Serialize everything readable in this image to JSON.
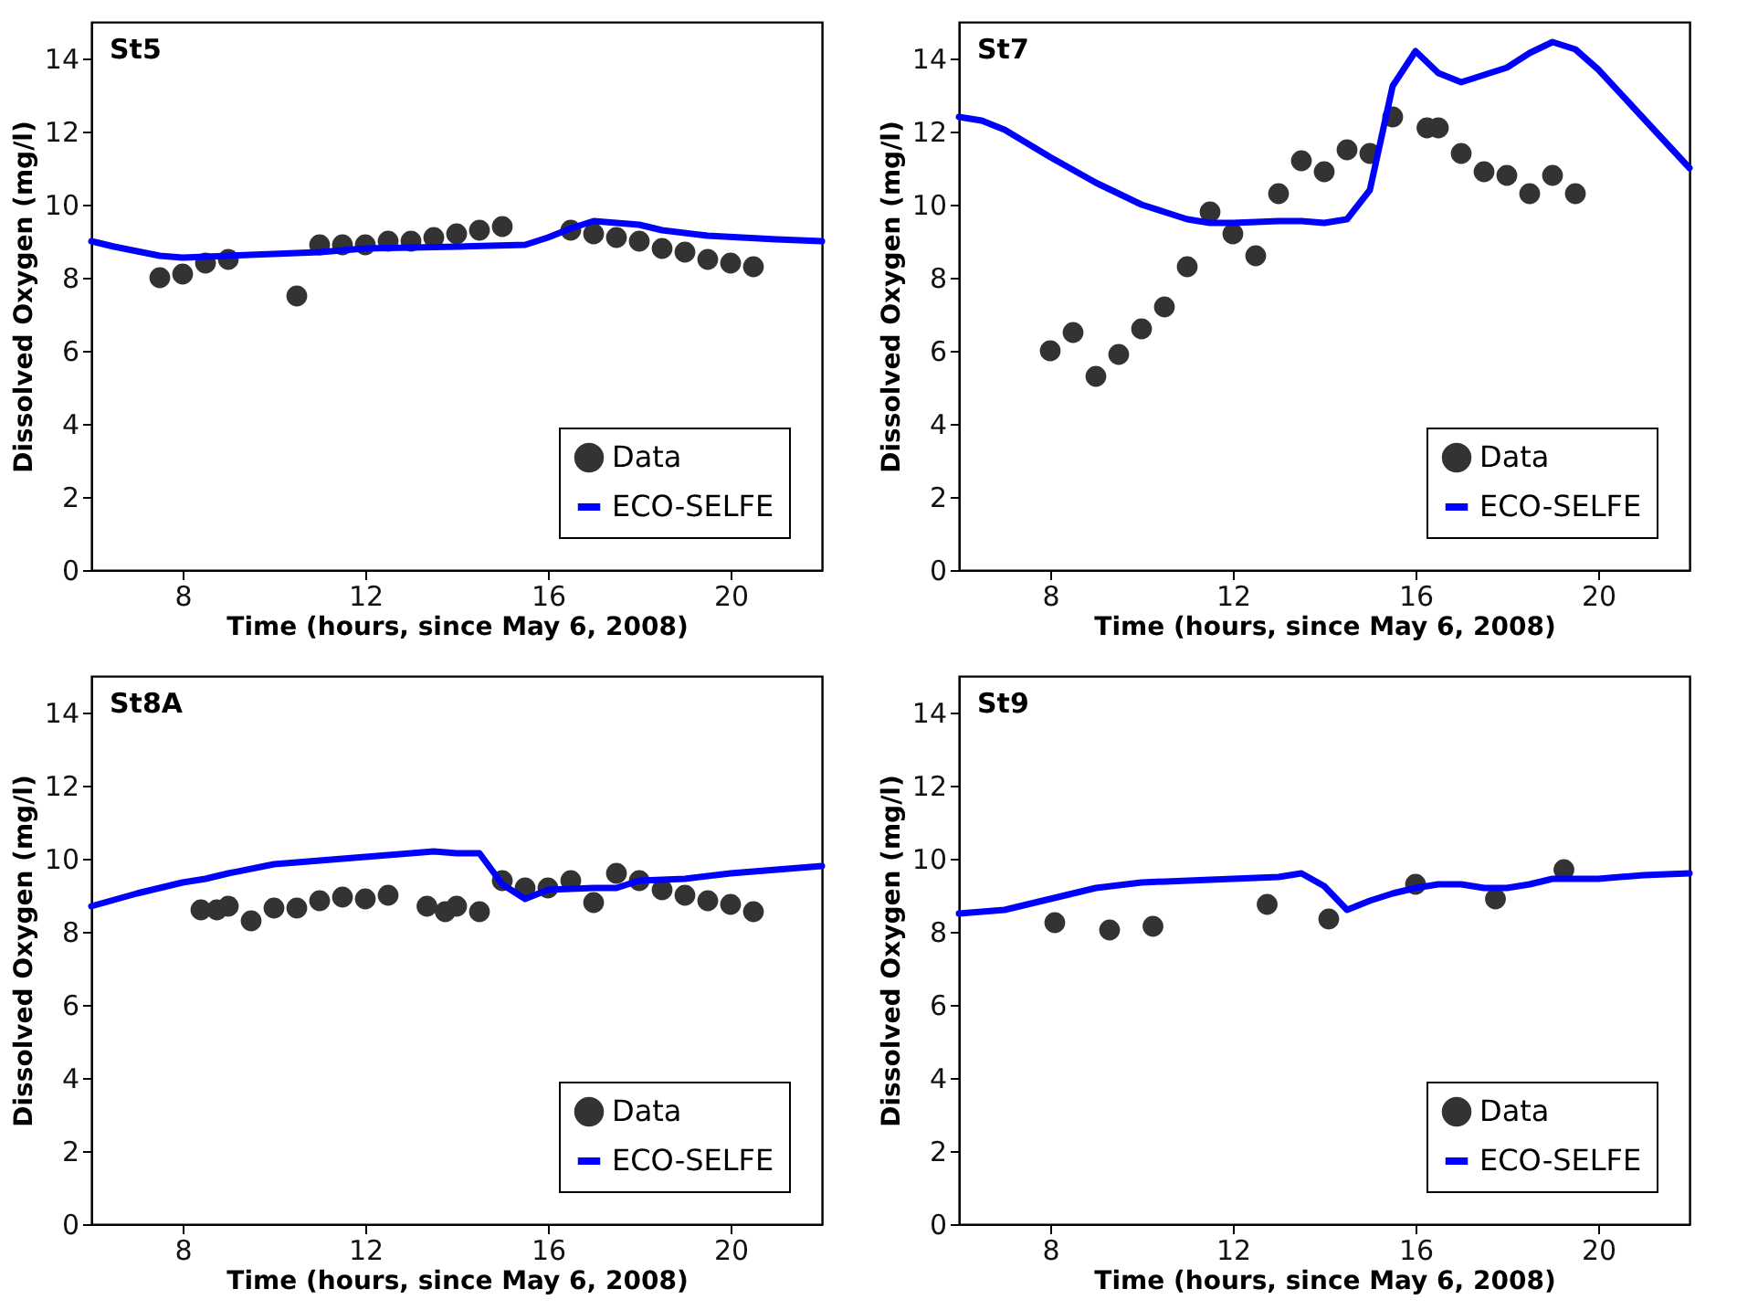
{
  "chart_data": [
    {
      "type": "line",
      "title": "St5",
      "xlabel": "Time (hours, since May 6, 2008)",
      "ylabel": "Dissolved Oxygen (mg/l)",
      "xlim": [
        6,
        22
      ],
      "xticks": [
        8,
        12,
        16,
        20
      ],
      "ylim": [
        0,
        15
      ],
      "yticks": [
        0,
        2,
        4,
        6,
        8,
        10,
        12,
        14
      ],
      "legend": "bottom right",
      "series": [
        {
          "name": "Data",
          "type": "scatter",
          "color": "#333333",
          "x": [
            7.5,
            8,
            8.5,
            9,
            10.5,
            11,
            11.5,
            12,
            12.5,
            13,
            13.5,
            14,
            14.5,
            15,
            16.5,
            17,
            17.5,
            18,
            18.5,
            19,
            19.5,
            20,
            20.5
          ],
          "values": [
            8.0,
            8.1,
            8.4,
            8.5,
            7.5,
            8.9,
            8.9,
            8.9,
            9.0,
            9.0,
            9.1,
            9.2,
            9.3,
            9.4,
            9.3,
            9.2,
            9.1,
            9.0,
            8.8,
            8.7,
            8.5,
            8.4,
            8.3
          ]
        },
        {
          "name": "ECO-SELFE",
          "type": "line",
          "color": "#0000ff",
          "x": [
            6,
            6.5,
            7.5,
            8,
            9,
            11,
            12,
            14,
            15.5,
            16,
            16.5,
            17,
            18,
            18.5,
            19.5,
            21,
            22
          ],
          "values": [
            9.0,
            8.85,
            8.6,
            8.55,
            8.6,
            8.7,
            8.8,
            8.85,
            8.9,
            9.1,
            9.35,
            9.55,
            9.45,
            9.3,
            9.15,
            9.05,
            9.0
          ]
        }
      ]
    },
    {
      "type": "line",
      "title": "St7",
      "xlabel": "Time (hours, since May 6, 2008)",
      "ylabel": "Dissolved Oxygen (mg/l)",
      "xlim": [
        6,
        22
      ],
      "xticks": [
        8,
        12,
        16,
        20
      ],
      "ylim": [
        0,
        15
      ],
      "yticks": [
        0,
        2,
        4,
        6,
        8,
        10,
        12,
        14
      ],
      "legend": "bottom right",
      "series": [
        {
          "name": "Data",
          "type": "scatter",
          "color": "#333333",
          "x": [
            8,
            8.5,
            9,
            9.5,
            10,
            10.5,
            11,
            11.5,
            12,
            12.5,
            13,
            13.5,
            14,
            14.5,
            15,
            15.5,
            16.25,
            16.5,
            17,
            17.5,
            18,
            18.5,
            19,
            19.5
          ],
          "values": [
            6.0,
            6.5,
            5.3,
            5.9,
            6.6,
            7.2,
            8.3,
            9.8,
            9.2,
            8.6,
            10.3,
            11.2,
            10.9,
            11.5,
            11.4,
            12.4,
            12.1,
            12.1,
            11.4,
            10.9,
            10.8,
            10.3,
            10.8,
            10.3
          ]
        },
        {
          "name": "ECO-SELFE",
          "type": "line",
          "color": "#0000ff",
          "x": [
            6,
            6.5,
            7,
            8,
            9,
            10,
            11,
            11.5,
            12,
            13,
            13.5,
            14,
            14.5,
            15,
            15.5,
            16,
            16.5,
            17,
            18,
            18.5,
            19,
            19.5,
            20,
            21,
            22
          ],
          "values": [
            12.4,
            12.3,
            12.05,
            11.3,
            10.6,
            10.0,
            9.6,
            9.5,
            9.5,
            9.55,
            9.55,
            9.5,
            9.6,
            10.4,
            13.25,
            14.2,
            13.6,
            13.35,
            13.75,
            14.15,
            14.45,
            14.25,
            13.7,
            12.35,
            11.0
          ]
        }
      ]
    },
    {
      "type": "line",
      "title": "St8A",
      "xlabel": "Time (hours, since May 6, 2008)",
      "ylabel": "Dissolved Oxygen (mg/l)",
      "xlim": [
        6,
        22
      ],
      "xticks": [
        8,
        12,
        16,
        20
      ],
      "ylim": [
        0,
        15
      ],
      "yticks": [
        0,
        2,
        4,
        6,
        8,
        10,
        12,
        14
      ],
      "legend": "bottom right",
      "series": [
        {
          "name": "Data",
          "type": "scatter",
          "color": "#333333",
          "x": [
            8.4,
            8.75,
            9,
            9.5,
            10,
            10.5,
            11,
            11.5,
            12,
            12.5,
            13.35,
            13.75,
            14,
            14.5,
            15,
            15.5,
            16,
            16.5,
            17,
            17.5,
            18,
            18.5,
            19,
            19.5,
            20,
            20.5
          ],
          "values": [
            8.6,
            8.6,
            8.7,
            8.3,
            8.65,
            8.65,
            8.85,
            8.95,
            8.9,
            9.0,
            8.7,
            8.55,
            8.7,
            8.55,
            9.4,
            9.2,
            9.2,
            9.4,
            8.8,
            9.6,
            9.4,
            9.15,
            9.0,
            8.85,
            8.75,
            8.55
          ]
        },
        {
          "name": "ECO-SELFE",
          "type": "line",
          "color": "#0000ff",
          "x": [
            6,
            7,
            8,
            8.5,
            9,
            10,
            11,
            12,
            12.5,
            13.5,
            14,
            14.5,
            15,
            15.5,
            16,
            17,
            17.5,
            18,
            19,
            20,
            21,
            22
          ],
          "values": [
            8.7,
            9.05,
            9.35,
            9.45,
            9.6,
            9.85,
            9.95,
            10.05,
            10.1,
            10.2,
            10.15,
            10.15,
            9.3,
            8.9,
            9.15,
            9.2,
            9.2,
            9.4,
            9.45,
            9.6,
            9.7,
            9.8
          ]
        }
      ]
    },
    {
      "type": "line",
      "title": "St9",
      "xlabel": "Time (hours, since May 6, 2008)",
      "ylabel": "Dissolved Oxygen (mg/l)",
      "xlim": [
        6,
        22
      ],
      "xticks": [
        8,
        12,
        16,
        20
      ],
      "ylim": [
        0,
        15
      ],
      "yticks": [
        0,
        2,
        4,
        6,
        8,
        10,
        12,
        14
      ],
      "legend": "bottom right",
      "series": [
        {
          "name": "Data",
          "type": "scatter",
          "color": "#333333",
          "x": [
            8.1,
            9.3,
            10.25,
            12.75,
            14.1,
            16,
            17.75,
            19.25
          ],
          "values": [
            8.25,
            8.05,
            8.15,
            8.75,
            8.35,
            9.3,
            8.9,
            9.7
          ]
        },
        {
          "name": "ECO-SELFE",
          "type": "line",
          "color": "#0000ff",
          "x": [
            6,
            7,
            7.5,
            8,
            8.5,
            9,
            10,
            12,
            13,
            13.5,
            14,
            14.5,
            15,
            15.5,
            16,
            16.5,
            17,
            17.5,
            18,
            18.5,
            19,
            20,
            21,
            22
          ],
          "values": [
            8.5,
            8.6,
            8.75,
            8.9,
            9.05,
            9.2,
            9.35,
            9.45,
            9.5,
            9.6,
            9.25,
            8.6,
            8.85,
            9.05,
            9.2,
            9.3,
            9.3,
            9.2,
            9.2,
            9.3,
            9.45,
            9.45,
            9.55,
            9.6
          ]
        }
      ]
    }
  ]
}
